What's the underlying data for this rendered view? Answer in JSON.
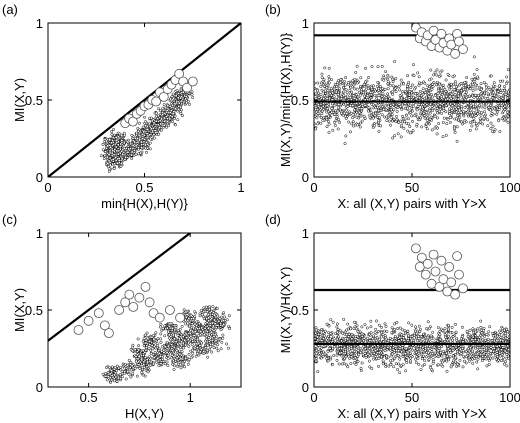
{
  "chart_data": [
    {
      "panel_label": "(a)",
      "type": "scatter",
      "xlabel": "min{H(X),H(Y)}",
      "ylabel": "MI(X,Y)",
      "xlim": [
        0,
        1
      ],
      "ylim": [
        0,
        1
      ],
      "xticks": [
        {
          "value": 0,
          "label": "0"
        },
        {
          "value": 0.5,
          "label": "0.5"
        },
        {
          "value": 1,
          "label": "1"
        }
      ],
      "yticks": [
        {
          "value": 0,
          "label": "0"
        },
        {
          "value": 0.5,
          "label": "0.5"
        },
        {
          "value": 1,
          "label": "1"
        }
      ],
      "lines": [
        {
          "kind": "segment",
          "x": [
            0,
            1
          ],
          "y": [
            0,
            1
          ]
        }
      ],
      "series": [
        {
          "marker": "small-dots",
          "description": "bulk of pairs",
          "points": [
            [
              0.34,
              0.1
            ],
            [
              0.34,
              0.15
            ],
            [
              0.34,
              0.19
            ],
            [
              0.34,
              0.23
            ],
            [
              0.36,
              0.12
            ],
            [
              0.36,
              0.17
            ],
            [
              0.36,
              0.21
            ],
            [
              0.36,
              0.25
            ],
            [
              0.42,
              0.15
            ],
            [
              0.45,
              0.22
            ],
            [
              0.48,
              0.2
            ],
            [
              0.5,
              0.27
            ],
            [
              0.52,
              0.3
            ],
            [
              0.55,
              0.33
            ],
            [
              0.58,
              0.36
            ],
            [
              0.6,
              0.38
            ],
            [
              0.62,
              0.4
            ],
            [
              0.65,
              0.45
            ],
            [
              0.68,
              0.5
            ],
            [
              0.7,
              0.53
            ]
          ]
        },
        {
          "marker": "open-circles",
          "description": "outlier pairs",
          "points": [
            [
              0.4,
              0.35
            ],
            [
              0.42,
              0.38
            ],
            [
              0.44,
              0.36
            ],
            [
              0.46,
              0.41
            ],
            [
              0.48,
              0.43
            ],
            [
              0.5,
              0.46
            ],
            [
              0.52,
              0.47
            ],
            [
              0.54,
              0.5
            ],
            [
              0.56,
              0.49
            ],
            [
              0.58,
              0.55
            ],
            [
              0.6,
              0.52
            ],
            [
              0.62,
              0.57
            ],
            [
              0.64,
              0.6
            ],
            [
              0.66,
              0.63
            ],
            [
              0.68,
              0.67
            ],
            [
              0.7,
              0.62
            ],
            [
              0.72,
              0.58
            ],
            [
              0.75,
              0.62
            ]
          ]
        }
      ]
    },
    {
      "panel_label": "(b)",
      "type": "scatter",
      "xlabel": "X: all (X,Y) pairs with Y>X",
      "ylabel": "MI(X,Y)/min{H(X),H(Y)}",
      "xlim": [
        0,
        100
      ],
      "ylim": [
        0,
        1
      ],
      "xticks": [
        {
          "value": 0,
          "label": "0"
        },
        {
          "value": 50,
          "label": "50"
        },
        {
          "value": 100,
          "label": "100"
        }
      ],
      "yticks": [
        {
          "value": 0,
          "label": "0"
        },
        {
          "value": 0.5,
          "label": "0.5"
        },
        {
          "value": 1,
          "label": "1"
        }
      ],
      "lines": [
        {
          "kind": "hline",
          "y": 0.92
        },
        {
          "kind": "hline",
          "y": 0.49
        }
      ],
      "series": [
        {
          "marker": "small-dots",
          "description": "all pairs",
          "band": [
            0.2,
            0.78
          ]
        },
        {
          "marker": "open-circles",
          "description": "outlier pairs",
          "points": [
            [
              52,
              0.97
            ],
            [
              54,
              0.9
            ],
            [
              55,
              0.94
            ],
            [
              57,
              0.88
            ],
            [
              58,
              0.92
            ],
            [
              60,
              0.85
            ],
            [
              61,
              0.95
            ],
            [
              62,
              0.89
            ],
            [
              64,
              0.84
            ],
            [
              65,
              0.93
            ],
            [
              66,
              0.87
            ],
            [
              68,
              0.82
            ],
            [
              69,
              0.9
            ],
            [
              70,
              0.86
            ],
            [
              72,
              0.8
            ],
            [
              73,
              0.93
            ],
            [
              74,
              0.88
            ],
            [
              76,
              0.83
            ]
          ]
        }
      ]
    },
    {
      "panel_label": "(c)",
      "type": "scatter",
      "xlabel": "H(X,Y)",
      "ylabel": "MI(X,Y)",
      "xlim": [
        0.3,
        1.25
      ],
      "ylim": [
        0,
        1
      ],
      "xticks": [
        {
          "value": 0.5,
          "label": "0.5"
        },
        {
          "value": 1,
          "label": "1"
        }
      ],
      "yticks": [
        {
          "value": 0,
          "label": "0"
        },
        {
          "value": 0.5,
          "label": "0.5"
        },
        {
          "value": 1,
          "label": "1"
        }
      ],
      "lines": [
        {
          "kind": "segment",
          "x": [
            0.3,
            1.0
          ],
          "y": [
            0.3,
            1.0
          ]
        }
      ],
      "series": [
        {
          "marker": "small-dots",
          "description": "bulk of pairs",
          "points": [
            [
              0.62,
              0.08
            ],
            [
              0.7,
              0.12
            ],
            [
              0.78,
              0.15
            ],
            [
              0.85,
              0.2
            ],
            [
              0.9,
              0.25
            ],
            [
              0.95,
              0.3
            ],
            [
              1.0,
              0.33
            ],
            [
              1.05,
              0.38
            ],
            [
              1.1,
              0.4
            ],
            [
              1.15,
              0.42
            ],
            [
              0.8,
              0.3
            ],
            [
              0.9,
              0.38
            ],
            [
              1.0,
              0.45
            ],
            [
              1.1,
              0.48
            ],
            [
              0.75,
              0.22
            ],
            [
              0.95,
              0.18
            ],
            [
              1.05,
              0.25
            ],
            [
              1.12,
              0.3
            ]
          ]
        },
        {
          "marker": "open-circles",
          "description": "outlier pairs",
          "points": [
            [
              0.45,
              0.37
            ],
            [
              0.5,
              0.43
            ],
            [
              0.55,
              0.48
            ],
            [
              0.58,
              0.4
            ],
            [
              0.6,
              0.35
            ],
            [
              0.65,
              0.5
            ],
            [
              0.68,
              0.55
            ],
            [
              0.7,
              0.6
            ],
            [
              0.72,
              0.52
            ],
            [
              0.75,
              0.58
            ],
            [
              0.78,
              0.65
            ],
            [
              0.8,
              0.55
            ],
            [
              0.82,
              0.48
            ],
            [
              0.85,
              0.45
            ],
            [
              0.9,
              0.5
            ],
            [
              0.95,
              0.45
            ]
          ]
        }
      ]
    },
    {
      "panel_label": "(d)",
      "type": "scatter",
      "xlabel": "X: all (X,Y) pairs with Y>X",
      "ylabel": "MI(X,Y)/H(X,Y)",
      "xlim": [
        0,
        100
      ],
      "ylim": [
        0,
        1
      ],
      "xticks": [
        {
          "value": 0,
          "label": "0"
        },
        {
          "value": 50,
          "label": "50"
        },
        {
          "value": 100,
          "label": "100"
        }
      ],
      "yticks": [
        {
          "value": 0,
          "label": "0"
        },
        {
          "value": 0.5,
          "label": "0.5"
        },
        {
          "value": 1,
          "label": "1"
        }
      ],
      "lines": [
        {
          "kind": "hline",
          "y": 0.63
        },
        {
          "kind": "hline",
          "y": 0.28
        }
      ],
      "series": [
        {
          "marker": "small-dots",
          "description": "all pairs",
          "band": [
            0.06,
            0.48
          ]
        },
        {
          "marker": "open-circles",
          "description": "outlier pairs",
          "points": [
            [
              52,
              0.9
            ],
            [
              54,
              0.78
            ],
            [
              55,
              0.84
            ],
            [
              57,
              0.73
            ],
            [
              58,
              0.8
            ],
            [
              60,
              0.67
            ],
            [
              61,
              0.86
            ],
            [
              62,
              0.75
            ],
            [
              64,
              0.65
            ],
            [
              65,
              0.82
            ],
            [
              66,
              0.7
            ],
            [
              68,
              0.62
            ],
            [
              69,
              0.78
            ],
            [
              70,
              0.68
            ],
            [
              72,
              0.6
            ],
            [
              73,
              0.85
            ],
            [
              74,
              0.73
            ],
            [
              76,
              0.64
            ]
          ]
        }
      ]
    }
  ]
}
